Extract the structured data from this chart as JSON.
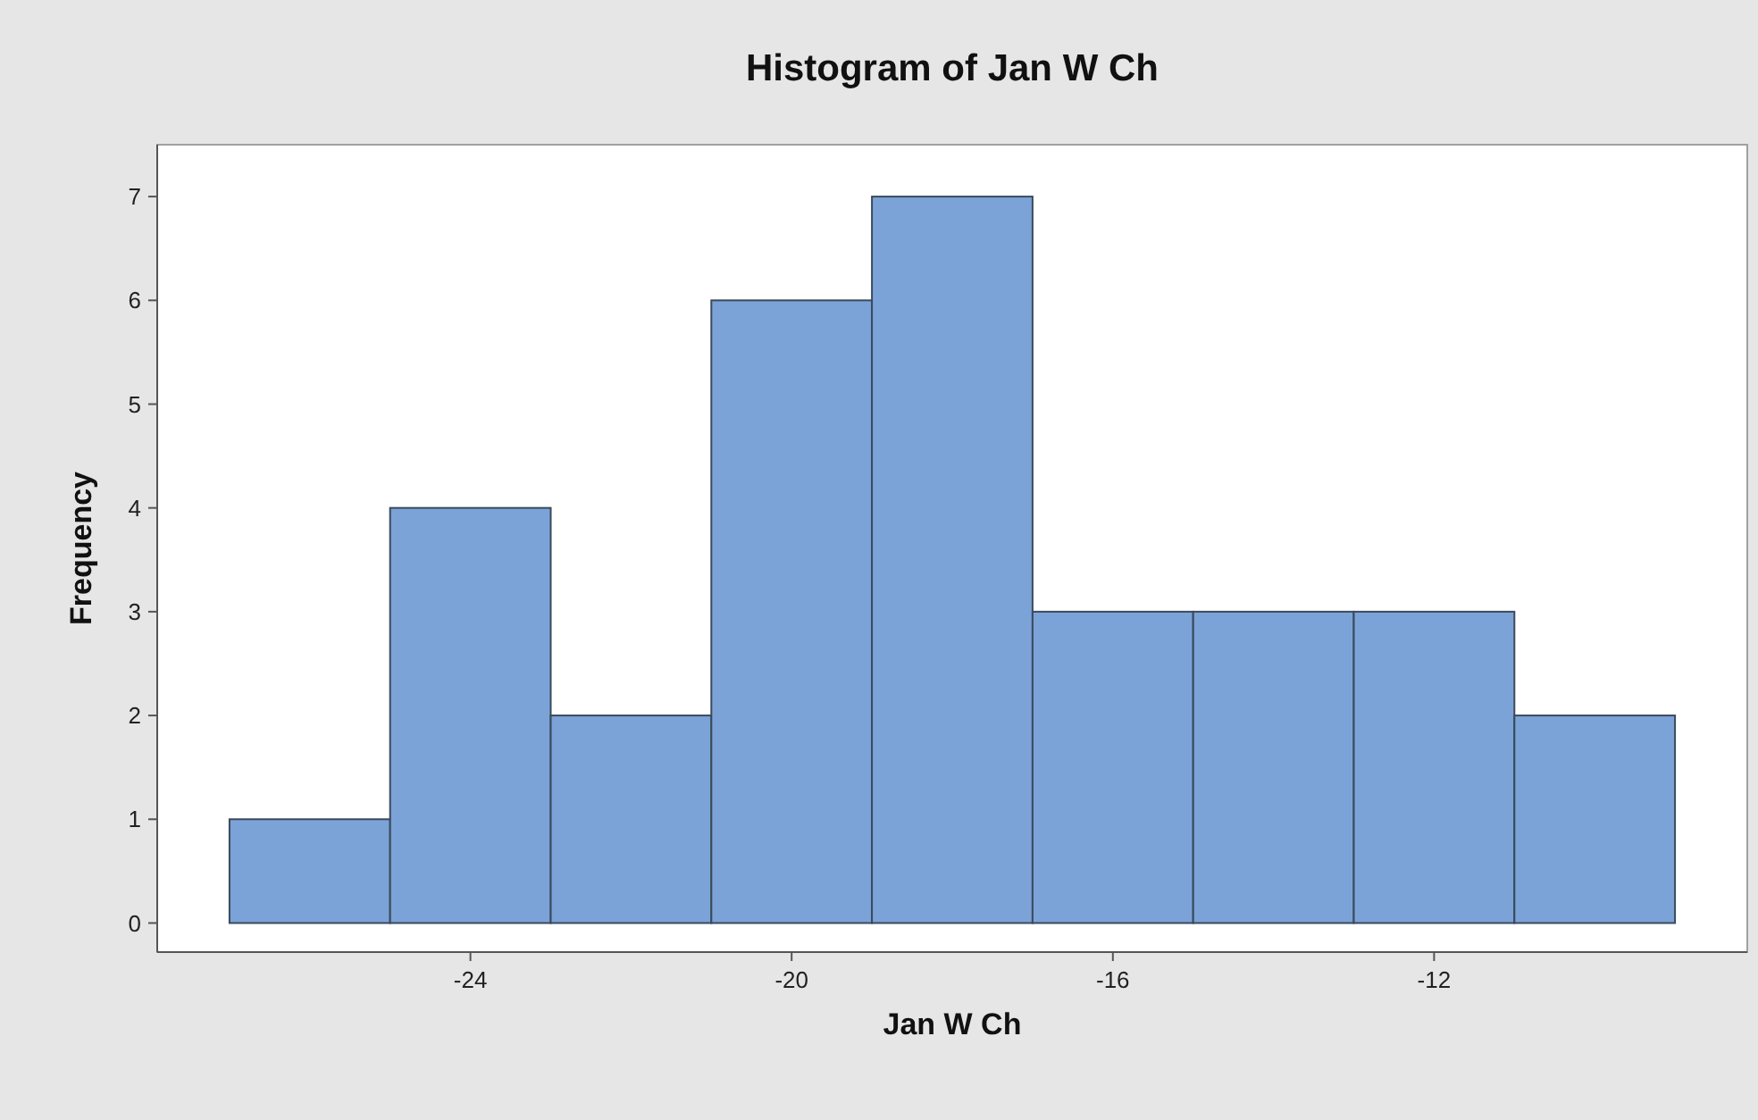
{
  "chart_data": {
    "type": "histogram",
    "title": "Histogram of Jan W Ch",
    "xlabel": "Jan W Ch",
    "ylabel": "Frequency",
    "bins": [
      -27,
      -25,
      -23,
      -21,
      -19,
      -17,
      -15,
      -13,
      -11,
      -9
    ],
    "values": [
      1,
      4,
      2,
      6,
      7,
      3,
      3,
      3,
      2
    ],
    "color": "#7ba3d7",
    "xlim": [
      -27.9,
      -8.1
    ],
    "xticks": [
      -24,
      -20,
      -16,
      -12
    ],
    "ylim": [
      -0.28,
      7.5
    ],
    "yticks": [
      0,
      1,
      2,
      3,
      4,
      5,
      6,
      7
    ],
    "grid": false
  }
}
